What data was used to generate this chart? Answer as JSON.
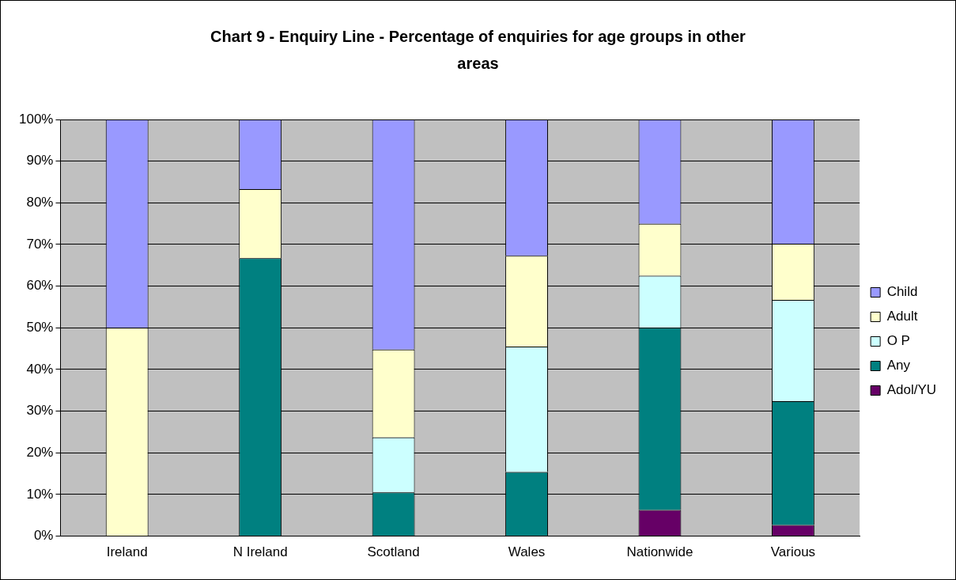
{
  "chart_data": {
    "type": "bar",
    "title": "Chart 9 - Enquiry Line - Percentage of enquiries for age groups in other areas",
    "categories": [
      "Ireland",
      "N Ireland",
      "Scotland",
      "Wales",
      "Nationwide",
      "Various"
    ],
    "stacked": true,
    "series": [
      {
        "name": "Adol/YU",
        "color": "#660066",
        "values": [
          0,
          0,
          0,
          0,
          6.3,
          2.7
        ]
      },
      {
        "name": "Any",
        "color": "#008080",
        "values": [
          0,
          66.7,
          10.5,
          15.4,
          43.7,
          29.7
        ]
      },
      {
        "name": "O P",
        "color": "#ccffff",
        "values": [
          0,
          0,
          13.2,
          30.1,
          12.5,
          24.3
        ]
      },
      {
        "name": "Adult",
        "color": "#ffffcc",
        "values": [
          50,
          16.6,
          21.1,
          21.8,
          12.5,
          13.5
        ]
      },
      {
        "name": "Child",
        "color": "#9999ff",
        "values": [
          50,
          16.7,
          55.2,
          32.7,
          25,
          29.8
        ]
      }
    ],
    "ylim": [
      0,
      100
    ],
    "yticks": [
      {
        "value": 0,
        "label": "0%"
      },
      {
        "value": 10,
        "label": "10%"
      },
      {
        "value": 20,
        "label": "20%"
      },
      {
        "value": 30,
        "label": "30%"
      },
      {
        "value": 40,
        "label": "40%"
      },
      {
        "value": 50,
        "label": "50%"
      },
      {
        "value": 60,
        "label": "60%"
      },
      {
        "value": 70,
        "label": "70%"
      },
      {
        "value": 80,
        "label": "80%"
      },
      {
        "value": 90,
        "label": "90%"
      },
      {
        "value": 100,
        "label": "100%"
      }
    ],
    "grid": "y",
    "legend": "right"
  }
}
